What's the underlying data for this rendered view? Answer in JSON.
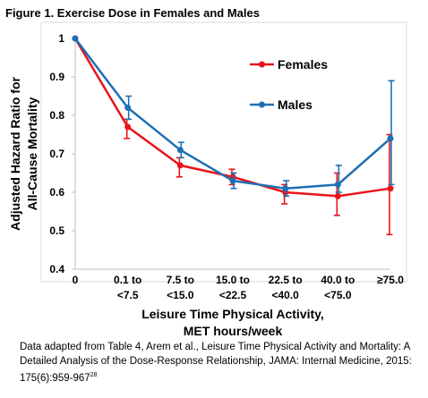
{
  "figure_title": "Figure 1. Exercise Dose in Females and Males",
  "caption": {
    "text": "Data adapted from Table 4, Arem et al., Leisure Time Physical Activity and Mortality: A Detailed Analysis of the Dose-Response Relationship, JAMA: Internal Medicine,  2015: 175(6):959-967",
    "ref": "28"
  },
  "chart_data": {
    "type": "line",
    "title": "Figure 1. Exercise Dose in Females and Males",
    "xlabel": [
      "Leisure Time Physical Activity,",
      "MET hours/week"
    ],
    "ylabel": [
      "Adjusted Hazard Ratio for",
      "All-Cause Mortality"
    ],
    "categories": [
      [
        "0"
      ],
      [
        "0.1 to",
        "<7.5"
      ],
      [
        "7.5 to",
        "<15.0"
      ],
      [
        "15.0 to",
        "<22.5"
      ],
      [
        "22.5 to",
        "<40.0"
      ],
      [
        "40.0 to",
        "<75.0"
      ],
      [
        "≥75.0"
      ]
    ],
    "ylim": [
      0.4,
      1
    ],
    "yticks": [
      0.4,
      0.5,
      0.6,
      0.7,
      0.8,
      0.9,
      1
    ],
    "ytick_labels": [
      "0.4",
      "0.5",
      "0.6",
      "0.7",
      "0.8",
      "0.9",
      "1"
    ],
    "grid": false,
    "legend_position": "top-right",
    "series": [
      {
        "name": "Females",
        "color": "#e8141a",
        "values": [
          1.0,
          0.77,
          0.67,
          0.64,
          0.6,
          0.59,
          0.61
        ],
        "lower": [
          1.0,
          0.74,
          0.64,
          0.62,
          0.57,
          0.54,
          0.49
        ],
        "upper": [
          1.0,
          0.79,
          0.69,
          0.66,
          0.62,
          0.65,
          0.75
        ]
      },
      {
        "name": "Males",
        "color": "#1f6fb4",
        "values": [
          1.0,
          0.82,
          0.71,
          0.63,
          0.61,
          0.62,
          0.74
        ],
        "lower": [
          1.0,
          0.79,
          0.69,
          0.61,
          0.59,
          0.6,
          0.62
        ],
        "upper": [
          1.0,
          0.85,
          0.73,
          0.65,
          0.63,
          0.67,
          0.89
        ]
      }
    ]
  }
}
